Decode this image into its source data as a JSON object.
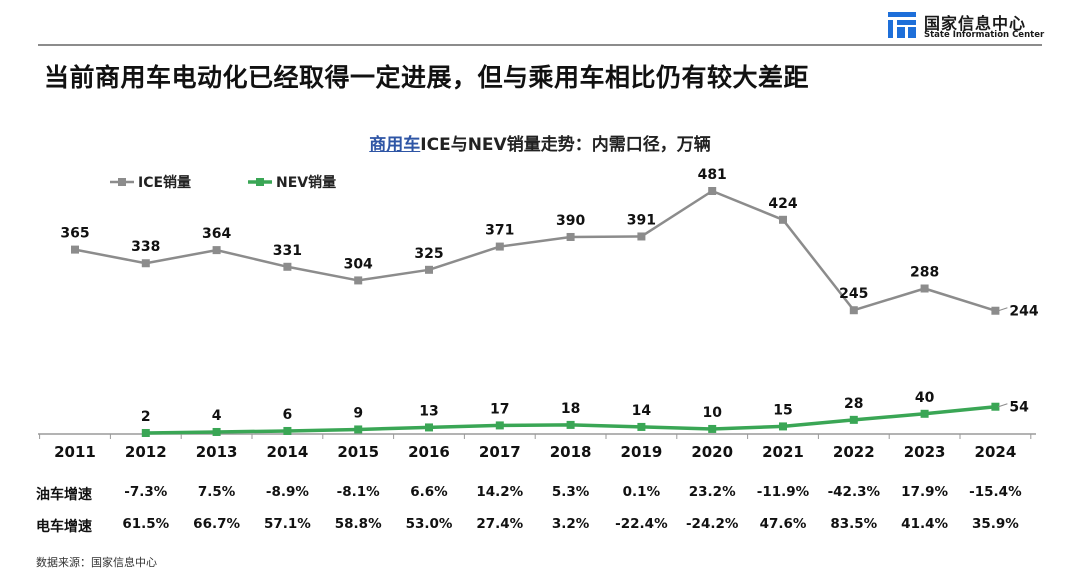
{
  "logo": {
    "cn": "国家信息中心",
    "en": "State Information Center"
  },
  "headline": "当前商用车电动化已经取得一定进展，但与乘用车相比仍有较大差距",
  "chart_title": {
    "highlight": "商用车",
    "rest": "ICE与NEV销量走势：内需口径，万辆"
  },
  "chart_data": {
    "type": "line",
    "x": [
      "2011",
      "2012",
      "2013",
      "2014",
      "2015",
      "2016",
      "2017",
      "2018",
      "2019",
      "2020",
      "2021",
      "2022",
      "2023",
      "2024"
    ],
    "series": [
      {
        "name": "ICE销量",
        "color": "#8c8c8c",
        "values": [
          365,
          338,
          364,
          331,
          304,
          325,
          371,
          390,
          391,
          481,
          424,
          245,
          288,
          244
        ]
      },
      {
        "name": "NEV销量",
        "color": "#3aa655",
        "values": [
          null,
          2,
          4,
          6,
          9,
          13,
          17,
          18,
          14,
          10,
          15,
          28,
          40,
          54
        ]
      }
    ],
    "ylim": [
      0,
      520
    ],
    "grid": false,
    "legend": "top-left"
  },
  "table": {
    "rows": [
      {
        "label": "油车增速",
        "values": [
          "-7.3%",
          "7.5%",
          "-8.9%",
          "-8.1%",
          "6.6%",
          "14.2%",
          "5.3%",
          "0.1%",
          "23.2%",
          "-11.9%",
          "-42.3%",
          "17.9%",
          "-15.4%"
        ]
      },
      {
        "label": "电车增速",
        "values": [
          "61.5%",
          "66.7%",
          "57.1%",
          "58.8%",
          "53.0%",
          "27.4%",
          "3.2%",
          "-22.4%",
          "-24.2%",
          "47.6%",
          "83.5%",
          "41.4%",
          "35.9%"
        ]
      }
    ]
  },
  "source": "数据来源：国家信息中心"
}
